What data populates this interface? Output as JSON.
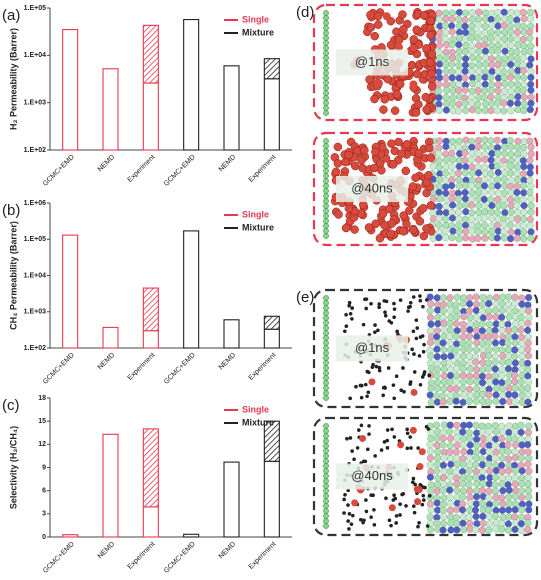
{
  "chart_data": [
    {
      "type": "bar",
      "panel_label": "(a)",
      "ylabel": "H₂ Permeability (Barrer)",
      "log_scale": true,
      "ylim": [
        100,
        100000
      ],
      "yticks": [
        {
          "value": 100,
          "label": "1.E+02"
        },
        {
          "value": 1000,
          "label": "1.E+03"
        },
        {
          "value": 10000,
          "label": "1.E+04"
        },
        {
          "value": 100000,
          "label": "1.E+05"
        }
      ],
      "categories": [
        "GCMC+EMD",
        "NEMD",
        "Experiment",
        "GCMC+EMD",
        "NEMD",
        "Experiment"
      ],
      "legend": "upper right",
      "series": [
        {
          "name": "Single",
          "color": "#e8384f",
          "values": [
            35000,
            5200,
            2600,
            null,
            null,
            null
          ],
          "hatched_upper": [
            null,
            null,
            43000,
            null,
            null,
            null
          ]
        },
        {
          "name": "Mixture",
          "color": "#222222",
          "values": [
            null,
            null,
            null,
            57000,
            6000,
            3200
          ],
          "hatched_upper": [
            null,
            null,
            null,
            null,
            null,
            8500
          ]
        }
      ]
    },
    {
      "type": "bar",
      "panel_label": "(b)",
      "ylabel": "CH₄ Permeability (Barrer)",
      "log_scale": true,
      "ylim": [
        100,
        1000000
      ],
      "yticks": [
        {
          "value": 100,
          "label": "1.E+02"
        },
        {
          "value": 1000,
          "label": "1.E+03"
        },
        {
          "value": 10000,
          "label": "1.E+04"
        },
        {
          "value": 100000,
          "label": "1.E+05"
        },
        {
          "value": 1000000,
          "label": "1.E+06"
        }
      ],
      "categories": [
        "GCMC+EMD",
        "NEMD",
        "Experiment",
        "GCMC+EMD",
        "NEMD",
        "Experiment"
      ],
      "legend": "upper right",
      "series": [
        {
          "name": "Single",
          "color": "#e8384f",
          "values": [
            130000,
            370,
            300,
            null,
            null,
            null
          ],
          "hatched_upper": [
            null,
            null,
            4500,
            null,
            null,
            null
          ]
        },
        {
          "name": "Mixture",
          "color": "#222222",
          "values": [
            null,
            null,
            null,
            170000,
            600,
            330
          ],
          "hatched_upper": [
            null,
            null,
            null,
            null,
            null,
            750
          ]
        }
      ]
    },
    {
      "type": "bar",
      "panel_label": "(c)",
      "ylabel": "Selectivity (H₂/CH₄)",
      "log_scale": false,
      "ylim": [
        0,
        18
      ],
      "yticks": [
        0,
        3,
        6,
        9,
        12,
        15,
        18
      ],
      "categories": [
        "GCMC+EMD",
        "NEMD",
        "Experiment",
        "GCMC+EMD",
        "NEMD",
        "Experiment"
      ],
      "legend": "upper right",
      "series": [
        {
          "name": "Single",
          "color": "#e8384f",
          "values": [
            0.3,
            13.3,
            3.9,
            null,
            null,
            null
          ],
          "hatched_upper": [
            null,
            null,
            14,
            null,
            null,
            null
          ]
        },
        {
          "name": "Mixture",
          "color": "#222222",
          "values": [
            null,
            null,
            null,
            0.35,
            9.7,
            9.8
          ],
          "hatched_upper": [
            null,
            null,
            null,
            null,
            null,
            15
          ]
        }
      ]
    }
  ],
  "simulations": [
    {
      "panel_label": "(d)",
      "color": "#e8384f",
      "snapshots": [
        "@1ns",
        "@40ns"
      ]
    },
    {
      "panel_label": "(e)",
      "color": "#333333",
      "snapshots": [
        "@1ns",
        "@40ns"
      ]
    }
  ]
}
